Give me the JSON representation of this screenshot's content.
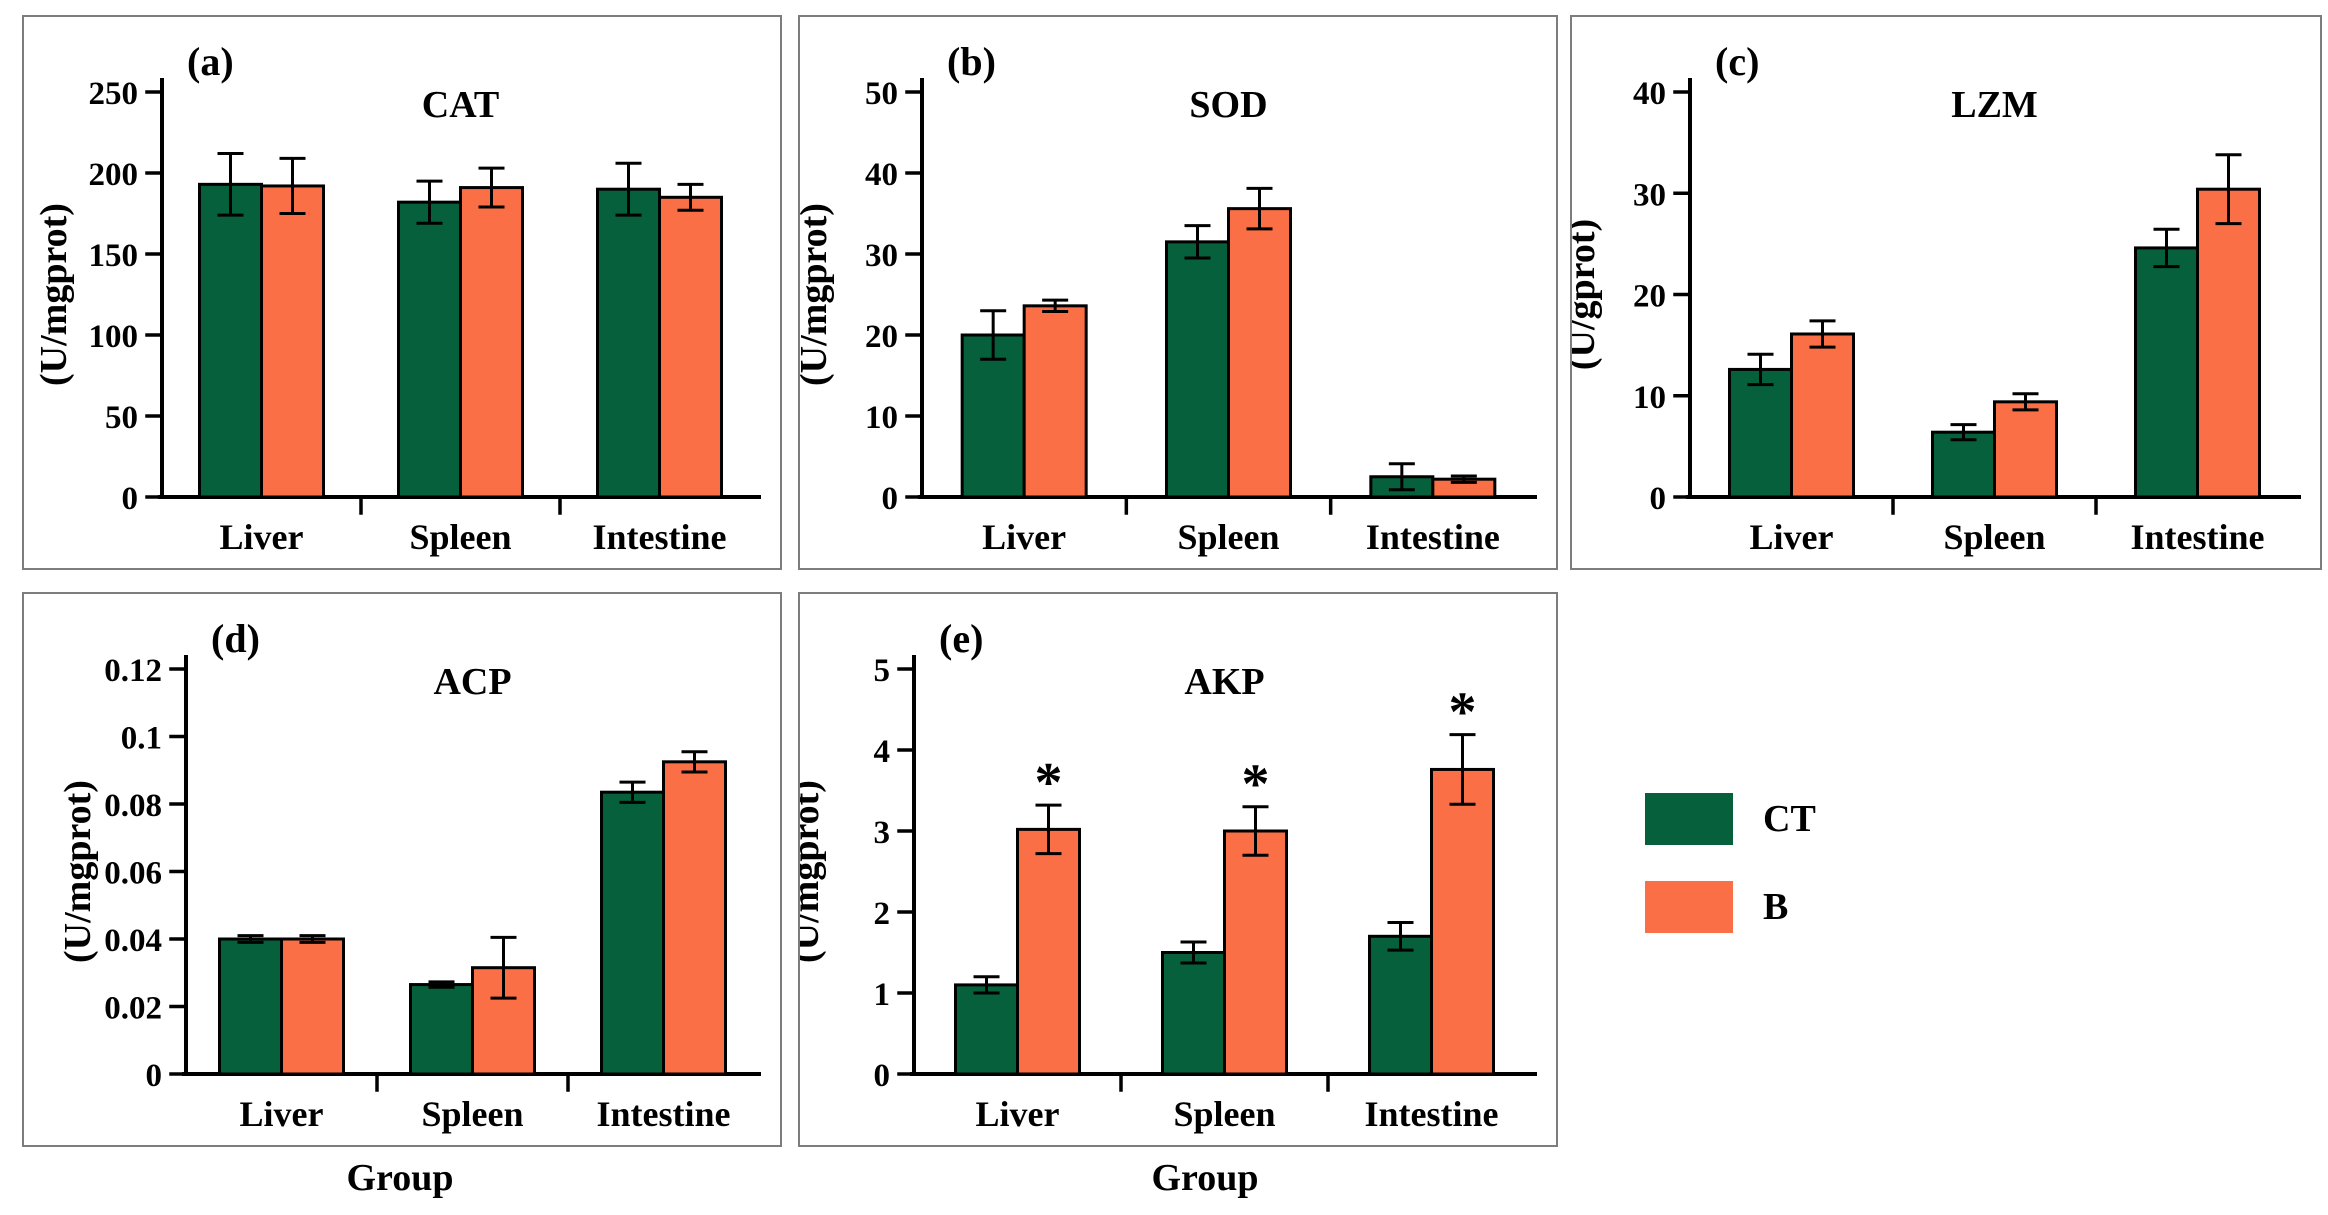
{
  "figure": {
    "background": "#ffffff",
    "panel_border_color": "#7d7d7d",
    "bar_outline_color": "#000000",
    "series_colors": {
      "CT": "#05603B",
      "B": "#FB6F46"
    }
  },
  "legend": {
    "position": "bottom-right-column",
    "items": [
      {
        "label": "CT",
        "color": "#05603B"
      },
      {
        "label": "B",
        "color": "#FB6F46"
      }
    ]
  },
  "group_axis_label": "Group",
  "chart_data": [
    {
      "id": "a",
      "type": "bar",
      "panel_label": "(a)",
      "title": "CAT",
      "ylabel": "(U/mgprot)",
      "ylim": [
        0,
        250
      ],
      "yticks": [
        0,
        50,
        100,
        150,
        200,
        250
      ],
      "ytick_labels": [
        "0",
        "50",
        "100",
        "150",
        "200",
        "250"
      ],
      "categories": [
        "Liver",
        "Spleen",
        "Intestine"
      ],
      "series": [
        {
          "name": "CT",
          "values": [
            193,
            182,
            190
          ],
          "errors": [
            19,
            13,
            16
          ]
        },
        {
          "name": "B",
          "values": [
            192,
            191,
            185
          ],
          "errors": [
            17,
            12,
            8
          ]
        }
      ]
    },
    {
      "id": "b",
      "type": "bar",
      "panel_label": "(b)",
      "title": "SOD",
      "ylabel": "(U/mgprot)",
      "ylim": [
        0,
        50
      ],
      "yticks": [
        0,
        10,
        20,
        30,
        40,
        50
      ],
      "ytick_labels": [
        "0",
        "10",
        "20",
        "30",
        "40",
        "50"
      ],
      "categories": [
        "Liver",
        "Spleen",
        "Intestine"
      ],
      "series": [
        {
          "name": "CT",
          "values": [
            20,
            31.5,
            2.5
          ],
          "errors": [
            3,
            2,
            1.6
          ]
        },
        {
          "name": "B",
          "values": [
            23.6,
            35.6,
            2.2
          ],
          "errors": [
            0.7,
            2.5,
            0.4
          ]
        }
      ]
    },
    {
      "id": "c",
      "type": "bar",
      "panel_label": "(c)",
      "title": "LZM",
      "ylabel": "(U/gprot)",
      "ylim": [
        0,
        40
      ],
      "yticks": [
        0,
        10,
        20,
        30,
        40
      ],
      "ytick_labels": [
        "0",
        "10",
        "20",
        "30",
        "40"
      ],
      "categories": [
        "Liver",
        "Spleen",
        "Intestine"
      ],
      "series": [
        {
          "name": "CT",
          "values": [
            12.6,
            6.4,
            24.6
          ],
          "errors": [
            1.5,
            0.75,
            1.85
          ]
        },
        {
          "name": "B",
          "values": [
            16.1,
            9.4,
            30.4
          ],
          "errors": [
            1.3,
            0.8,
            3.4
          ]
        }
      ]
    },
    {
      "id": "d",
      "type": "bar",
      "panel_label": "(d)",
      "title": "ACP",
      "ylabel": "(U/mgprot)",
      "ylim": [
        0,
        0.12
      ],
      "yticks": [
        0,
        0.02,
        0.04,
        0.06,
        0.08,
        0.1,
        0.12
      ],
      "ytick_labels": [
        "0",
        "0.02",
        "0.04",
        "0.06",
        "0.08",
        "0.1",
        "0.12"
      ],
      "categories": [
        "Liver",
        "Spleen",
        "Intestine"
      ],
      "series": [
        {
          "name": "CT",
          "values": [
            0.04,
            0.0265,
            0.0835
          ],
          "errors": [
            0.001,
            0.0008,
            0.003
          ]
        },
        {
          "name": "B",
          "values": [
            0.04,
            0.0315,
            0.0925
          ],
          "errors": [
            0.001,
            0.009,
            0.003
          ]
        }
      ]
    },
    {
      "id": "e",
      "type": "bar",
      "panel_label": "(e)",
      "title": "AKP",
      "ylabel": "(U/mgprot)",
      "ylim": [
        0,
        5
      ],
      "yticks": [
        0,
        1,
        2,
        3,
        4,
        5
      ],
      "ytick_labels": [
        "0",
        "1",
        "2",
        "3",
        "4",
        "5"
      ],
      "categories": [
        "Liver",
        "Spleen",
        "Intestine"
      ],
      "series": [
        {
          "name": "CT",
          "values": [
            1.1,
            1.5,
            1.7
          ],
          "errors": [
            0.1,
            0.13,
            0.17
          ]
        },
        {
          "name": "B",
          "values": [
            3.02,
            3.0,
            3.76
          ],
          "errors": [
            0.3,
            0.3,
            0.43
          ]
        }
      ],
      "significance": {
        "series": "B",
        "marks": [
          "*",
          "*",
          "*"
        ]
      }
    }
  ]
}
